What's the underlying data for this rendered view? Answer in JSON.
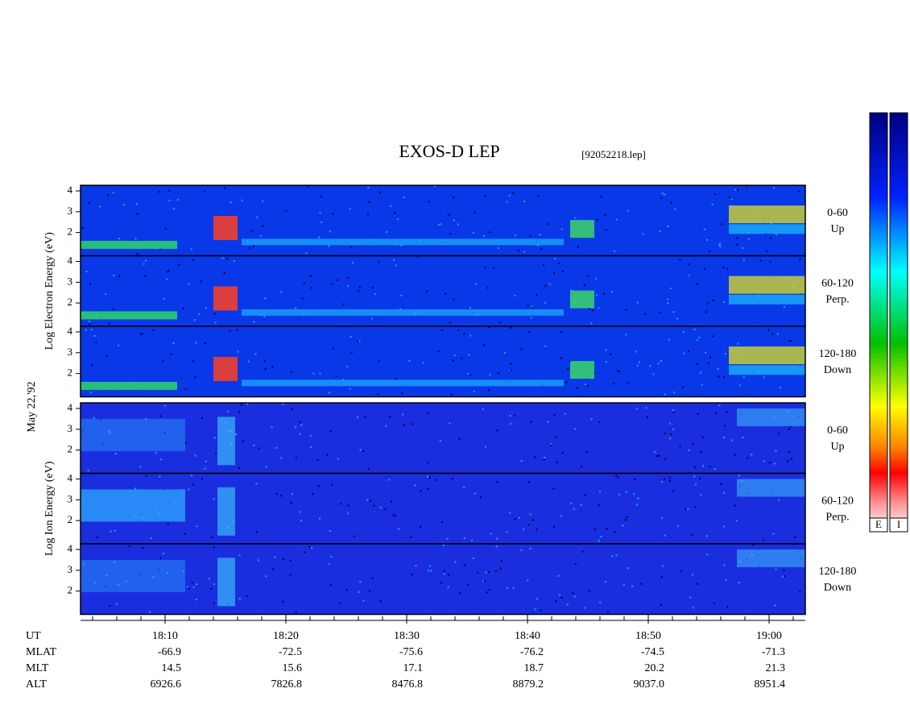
{
  "chart_data": {
    "type": "spectrogram",
    "title": "EXOS-D LEP",
    "subtitle": "[92052218.lep]",
    "date_label": "May 22,'92",
    "groups": [
      {
        "ylabel": "Log  Electron  Energy (eV)",
        "panels": [
          {
            "label": [
              "0-60",
              "Up"
            ]
          },
          {
            "label": [
              "60-120",
              "Perp."
            ]
          },
          {
            "label": [
              "120-180",
              "Down"
            ]
          }
        ]
      },
      {
        "ylabel": "Log  Ion  Energy (eV)",
        "panels": [
          {
            "label": [
              "0-60",
              "Up"
            ]
          },
          {
            "label": [
              "60-120",
              "Perp."
            ]
          },
          {
            "label": [
              "120-180",
              "Down"
            ]
          }
        ]
      }
    ],
    "ylim": [
      0.88,
      4.27
    ],
    "yticks": [
      2,
      3,
      4
    ],
    "xlim": [
      1083,
      1143
    ],
    "xticks": [
      {
        "value": 1090,
        "label": "18:10"
      },
      {
        "value": 1100,
        "label": "18:20"
      },
      {
        "value": 1110,
        "label": "18:30"
      },
      {
        "value": 1120,
        "label": "18:40"
      },
      {
        "value": 1130,
        "label": "18:50"
      },
      {
        "value": 1140,
        "label": "19:00"
      }
    ],
    "xminor_ticks": [
      1084,
      1086,
      1088,
      1092,
      1094,
      1096,
      1098,
      1102,
      1104,
      1106,
      1108,
      1112,
      1114,
      1116,
      1118,
      1122,
      1124,
      1126,
      1128,
      1132,
      1134,
      1136,
      1138,
      1142
    ],
    "ephemeris": [
      {
        "name": "UT",
        "values": []
      },
      {
        "name": "MLAT",
        "values": [
          "-66.9",
          "-72.5",
          "-75.6",
          "-76.2",
          "-74.5",
          "-71.3"
        ]
      },
      {
        "name": "MLT",
        "values": [
          "14.5",
          "15.6",
          "17.1",
          "18.7",
          "20.2",
          "21.3"
        ]
      },
      {
        "name": "ALT",
        "values": [
          "6926.6",
          "7826.8",
          "8476.8",
          "8879.2",
          "9037.0",
          "8951.4"
        ]
      }
    ],
    "colorbars": [
      "E",
      "I"
    ]
  }
}
